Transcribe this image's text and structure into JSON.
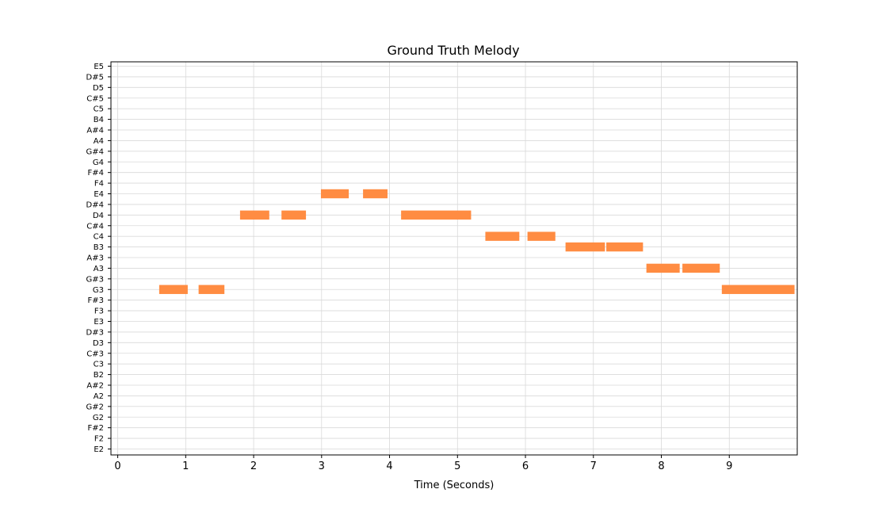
{
  "chart_data": {
    "type": "piano-roll",
    "title": "Ground Truth Melody",
    "xlabel": "Time (Seconds)",
    "ylabel": "",
    "xlim": [
      -0.1,
      10.0
    ],
    "x_ticks": [
      0,
      1,
      2,
      3,
      4,
      5,
      6,
      7,
      8,
      9
    ],
    "pitches": [
      "E2",
      "F2",
      "F#2",
      "G2",
      "G#2",
      "A2",
      "A#2",
      "B2",
      "C3",
      "C#3",
      "D3",
      "D#3",
      "E3",
      "F3",
      "F#3",
      "G3",
      "G#3",
      "A3",
      "A#3",
      "B3",
      "C4",
      "C#4",
      "D4",
      "D#4",
      "E4",
      "F4",
      "F#4",
      "G4",
      "G#4",
      "A4",
      "A#4",
      "B4",
      "C5",
      "C#5",
      "D5",
      "D#5",
      "E5"
    ],
    "grid": true,
    "note_color": "#ff8c42",
    "notes": [
      {
        "pitch": "G3",
        "start": 0.61,
        "end": 1.03
      },
      {
        "pitch": "G3",
        "start": 1.19,
        "end": 1.57
      },
      {
        "pitch": "D4",
        "start": 1.8,
        "end": 2.23
      },
      {
        "pitch": "D4",
        "start": 2.41,
        "end": 2.77
      },
      {
        "pitch": "E4",
        "start": 2.99,
        "end": 3.4
      },
      {
        "pitch": "E4",
        "start": 3.61,
        "end": 3.97
      },
      {
        "pitch": "D4",
        "start": 4.17,
        "end": 5.2
      },
      {
        "pitch": "C4",
        "start": 5.41,
        "end": 5.91
      },
      {
        "pitch": "C4",
        "start": 6.03,
        "end": 6.44
      },
      {
        "pitch": "B3",
        "start": 6.59,
        "end": 7.17
      },
      {
        "pitch": "B3",
        "start": 7.19,
        "end": 7.73
      },
      {
        "pitch": "A3",
        "start": 7.78,
        "end": 8.27
      },
      {
        "pitch": "A3",
        "start": 8.31,
        "end": 8.86
      },
      {
        "pitch": "G3",
        "start": 8.89,
        "end": 9.96
      }
    ]
  }
}
